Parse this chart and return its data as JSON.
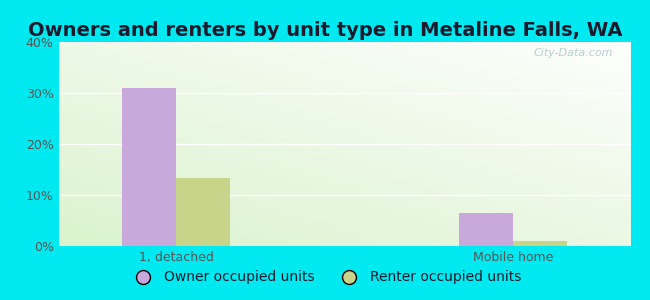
{
  "title": "Owners and renters by unit type in Metaline Falls, WA",
  "categories": [
    "1, detached",
    "Mobile home"
  ],
  "owner_values": [
    31.0,
    6.5
  ],
  "renter_values": [
    13.3,
    1.0
  ],
  "owner_color": "#c9a8dc",
  "renter_color": "#c8d48a",
  "owner_label": "Owner occupied units",
  "renter_label": "Renter occupied units",
  "ylim": [
    0,
    40
  ],
  "yticks": [
    0,
    10,
    20,
    30,
    40
  ],
  "yticklabels": [
    "0%",
    "10%",
    "20%",
    "30%",
    "40%"
  ],
  "bg_outer": "#00e8f0",
  "bar_width": 0.32,
  "group_positions": [
    1.0,
    3.0
  ],
  "title_fontsize": 14,
  "tick_fontsize": 9,
  "legend_fontsize": 10
}
